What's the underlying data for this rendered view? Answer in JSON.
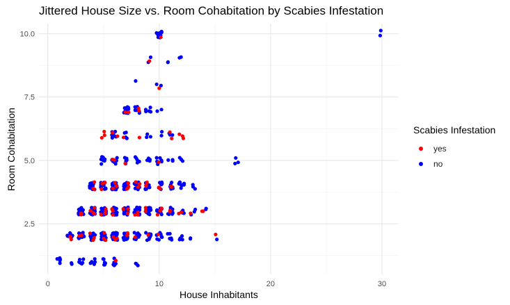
{
  "chart_data": {
    "type": "scatter",
    "title": "Jittered House Size vs. Room Cohabitation by Scabies Infestation",
    "xlabel": "House Inhabitants",
    "ylabel": "Room Cohabitation",
    "xlim": [
      -0.8,
      31.5
    ],
    "ylim": [
      0.5,
      10.4
    ],
    "x_ticks": [
      0,
      10,
      20,
      30
    ],
    "x_tick_labels": [
      "0",
      "10",
      "20",
      "30"
    ],
    "y_ticks": [
      2.5,
      5.0,
      7.5,
      10.0
    ],
    "y_tick_labels": [
      "2.5",
      "5.0",
      "7.5",
      "10.0"
    ],
    "grid": true,
    "jitter": {
      "x": 0.25,
      "y": 0.15
    },
    "legend": {
      "title": "Scabies Infestation",
      "position": "right",
      "entries": [
        {
          "label": "yes",
          "color": "#ff0000"
        },
        {
          "label": "no",
          "color": "#0000ff"
        }
      ]
    },
    "series": [
      {
        "name": "yes",
        "color": "#ff0000",
        "clusters": [
          [
            2,
            2,
            2
          ],
          [
            3,
            2,
            2
          ],
          [
            4,
            2,
            3
          ],
          [
            5,
            2,
            3
          ],
          [
            6,
            2,
            3
          ],
          [
            7,
            2,
            2
          ],
          [
            8,
            2,
            1
          ],
          [
            9,
            2,
            1
          ],
          [
            10,
            2,
            1
          ],
          [
            15,
            2,
            1
          ],
          [
            3,
            3,
            2
          ],
          [
            4,
            3,
            4
          ],
          [
            5,
            3,
            4
          ],
          [
            6,
            3,
            4
          ],
          [
            7,
            3,
            3
          ],
          [
            8,
            3,
            3
          ],
          [
            9,
            3,
            2
          ],
          [
            10,
            3,
            3
          ],
          [
            11,
            3,
            2
          ],
          [
            12,
            3,
            2
          ],
          [
            13,
            3,
            1
          ],
          [
            14,
            3,
            2
          ],
          [
            4,
            4,
            3
          ],
          [
            5,
            4,
            4
          ],
          [
            6,
            4,
            3
          ],
          [
            7,
            4,
            3
          ],
          [
            8,
            4,
            4
          ],
          [
            9,
            4,
            3
          ],
          [
            10,
            4,
            2
          ],
          [
            11,
            4,
            2
          ],
          [
            6,
            5,
            2
          ],
          [
            7,
            5,
            1
          ],
          [
            10,
            5,
            1
          ],
          [
            5,
            6,
            3
          ],
          [
            6,
            6,
            2
          ],
          [
            7,
            6,
            1
          ],
          [
            8,
            6,
            1
          ],
          [
            11,
            6,
            2
          ],
          [
            12,
            6,
            3
          ],
          [
            7,
            7,
            2
          ],
          [
            8,
            7,
            2
          ],
          [
            10,
            8,
            1
          ],
          [
            9,
            9,
            1
          ],
          [
            10,
            10,
            1
          ],
          [
            6,
            1,
            1
          ]
        ]
      },
      {
        "name": "no",
        "color": "#0000ff",
        "clusters": [
          [
            1,
            1,
            5
          ],
          [
            2,
            1,
            2
          ],
          [
            3,
            1,
            6
          ],
          [
            4,
            1,
            6
          ],
          [
            5,
            1,
            7
          ],
          [
            6,
            1,
            5
          ],
          [
            8,
            1,
            3
          ],
          [
            2,
            2,
            10
          ],
          [
            3,
            2,
            16
          ],
          [
            4,
            2,
            20
          ],
          [
            5,
            2,
            22
          ],
          [
            6,
            2,
            22
          ],
          [
            7,
            2,
            18
          ],
          [
            8,
            2,
            14
          ],
          [
            9,
            2,
            10
          ],
          [
            10,
            2,
            8
          ],
          [
            11,
            2,
            5
          ],
          [
            12,
            2,
            4
          ],
          [
            13,
            2,
            2
          ],
          [
            15,
            2,
            1
          ],
          [
            3,
            3,
            14
          ],
          [
            4,
            3,
            22
          ],
          [
            5,
            3,
            24
          ],
          [
            6,
            3,
            22
          ],
          [
            7,
            3,
            20
          ],
          [
            8,
            3,
            16
          ],
          [
            9,
            3,
            13
          ],
          [
            10,
            3,
            11
          ],
          [
            11,
            3,
            8
          ],
          [
            12,
            3,
            6
          ],
          [
            13,
            3,
            3
          ],
          [
            14,
            3,
            2
          ],
          [
            4,
            4,
            18
          ],
          [
            5,
            4,
            20
          ],
          [
            6,
            4,
            18
          ],
          [
            7,
            4,
            18
          ],
          [
            8,
            4,
            14
          ],
          [
            9,
            4,
            12
          ],
          [
            10,
            4,
            8
          ],
          [
            11,
            4,
            7
          ],
          [
            12,
            4,
            8
          ],
          [
            13,
            4,
            3
          ],
          [
            5,
            5,
            10
          ],
          [
            6,
            5,
            8
          ],
          [
            7,
            5,
            6
          ],
          [
            8,
            5,
            5
          ],
          [
            9,
            5,
            4
          ],
          [
            10,
            5,
            7
          ],
          [
            11,
            5,
            3
          ],
          [
            12,
            5,
            3
          ],
          [
            17,
            5,
            3
          ],
          [
            6,
            6,
            8
          ],
          [
            7,
            6,
            5
          ],
          [
            9,
            6,
            3
          ],
          [
            10,
            6,
            2
          ],
          [
            11,
            6,
            3
          ],
          [
            7,
            7,
            14
          ],
          [
            8,
            7,
            6
          ],
          [
            9,
            7,
            5
          ],
          [
            10,
            7,
            2
          ],
          [
            10,
            8,
            2
          ],
          [
            8,
            8,
            1
          ],
          [
            9,
            9,
            2
          ],
          [
            11,
            9,
            2
          ],
          [
            12,
            9,
            2
          ],
          [
            10,
            10,
            8
          ],
          [
            30,
            10,
            2
          ]
        ]
      }
    ]
  }
}
